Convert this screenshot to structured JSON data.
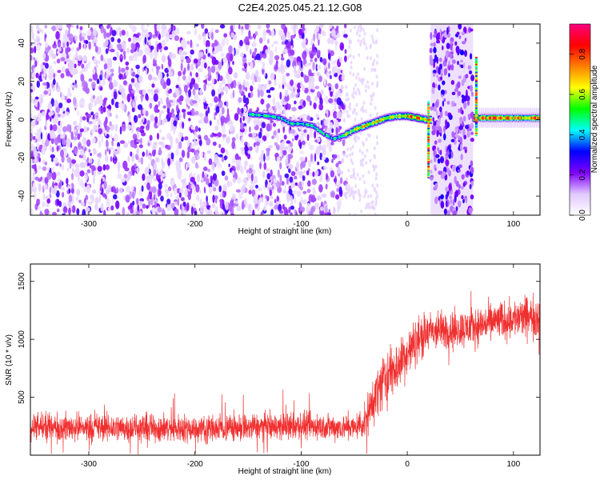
{
  "title": "C2E4.2025.045.21.12.G08",
  "chart_data": [
    {
      "type": "heatmap",
      "xlabel": "Height of straight line (km)",
      "ylabel": "Frequency (Hz)",
      "xlim": [
        -355,
        125
      ],
      "ylim": [
        -50,
        50
      ],
      "xticks": [
        -300,
        -200,
        -100,
        0,
        100
      ],
      "yticks": [
        -40,
        -20,
        0,
        20,
        40
      ],
      "xtick_labels": [
        "-300",
        "-200",
        "-100",
        "0",
        "100"
      ],
      "ytick_labels": [
        "-40",
        "-20",
        "0",
        "20",
        "40"
      ],
      "colorbar": {
        "label": "Normalized spectral amplitude",
        "range": [
          0,
          0.95
        ],
        "ticks": [
          0,
          0.2,
          0.4,
          0.6,
          0.8
        ],
        "tick_labels": [
          "0.0",
          "0.2",
          "0.4",
          "0.6",
          "0.8"
        ],
        "colors": [
          "#ffffff",
          "#e0c8ff",
          "#8000ff",
          "#0000ff",
          "#00ffff",
          "#00ff00",
          "#ffff00",
          "#ff8000",
          "#ff0000",
          "#ff0080"
        ]
      },
      "noise_region": {
        "x": [
          -355,
          -58
        ],
        "y": [
          -50,
          50
        ],
        "amplitude": [
          0.05,
          0.3
        ]
      },
      "ridge": [
        {
          "x": -150,
          "y": 3
        },
        {
          "x": -130,
          "y": 2
        },
        {
          "x": -120,
          "y": 1
        },
        {
          "x": -110,
          "y": -2
        },
        {
          "x": -100,
          "y": -2
        },
        {
          "x": -90,
          "y": -3
        },
        {
          "x": -80,
          "y": -7
        },
        {
          "x": -70,
          "y": -10
        },
        {
          "x": -60,
          "y": -8
        },
        {
          "x": -50,
          "y": -5
        },
        {
          "x": -40,
          "y": -3
        },
        {
          "x": -30,
          "y": -1
        },
        {
          "x": -20,
          "y": 1
        },
        {
          "x": -10,
          "y": 2
        },
        {
          "x": 0,
          "y": 2
        },
        {
          "x": 10,
          "y": 1
        },
        {
          "x": 18,
          "y": 0
        },
        {
          "x": 65,
          "y": 1
        },
        {
          "x": 80,
          "y": 1
        },
        {
          "x": 100,
          "y": 1
        },
        {
          "x": 125,
          "y": 1
        }
      ],
      "gaps": [
        {
          "x": [
            22,
            62
          ],
          "y": [
            -50,
            50
          ]
        }
      ],
      "spikes": [
        {
          "x": 20,
          "y": [
            -30,
            10
          ]
        },
        {
          "x": 65,
          "y": [
            -8,
            33
          ]
        }
      ]
    },
    {
      "type": "line",
      "xlabel": "Height of straight line (km)",
      "ylabel": "SNR (10 * v/v)",
      "xlim": [
        -355,
        125
      ],
      "ylim": [
        0,
        1650
      ],
      "xticks": [
        -300,
        -200,
        -100,
        0,
        100
      ],
      "yticks": [
        500,
        1000,
        1500
      ],
      "xtick_labels": [
        "-300",
        "-200",
        "-100",
        "0",
        "100"
      ],
      "ytick_labels": [
        "500",
        "1000",
        "1500"
      ],
      "color": "#f03030",
      "envelope": [
        {
          "x": -355,
          "mean": 240,
          "spread": 110
        },
        {
          "x": -300,
          "mean": 240,
          "spread": 110
        },
        {
          "x": -200,
          "mean": 230,
          "spread": 110
        },
        {
          "x": -100,
          "mean": 250,
          "spread": 110
        },
        {
          "x": -50,
          "mean": 240,
          "spread": 100
        },
        {
          "x": -40,
          "mean": 280,
          "spread": 120
        },
        {
          "x": -30,
          "mean": 520,
          "spread": 200
        },
        {
          "x": -20,
          "mean": 680,
          "spread": 230
        },
        {
          "x": -10,
          "mean": 760,
          "spread": 200
        },
        {
          "x": 0,
          "mean": 880,
          "spread": 190
        },
        {
          "x": 10,
          "mean": 1000,
          "spread": 180
        },
        {
          "x": 20,
          "mean": 1060,
          "spread": 160
        },
        {
          "x": 40,
          "mean": 1080,
          "spread": 150
        },
        {
          "x": 60,
          "mean": 1100,
          "spread": 150
        },
        {
          "x": 80,
          "mean": 1150,
          "spread": 150
        },
        {
          "x": 100,
          "mean": 1180,
          "spread": 150
        },
        {
          "x": 125,
          "mean": 1200,
          "spread": 170
        }
      ]
    }
  ]
}
